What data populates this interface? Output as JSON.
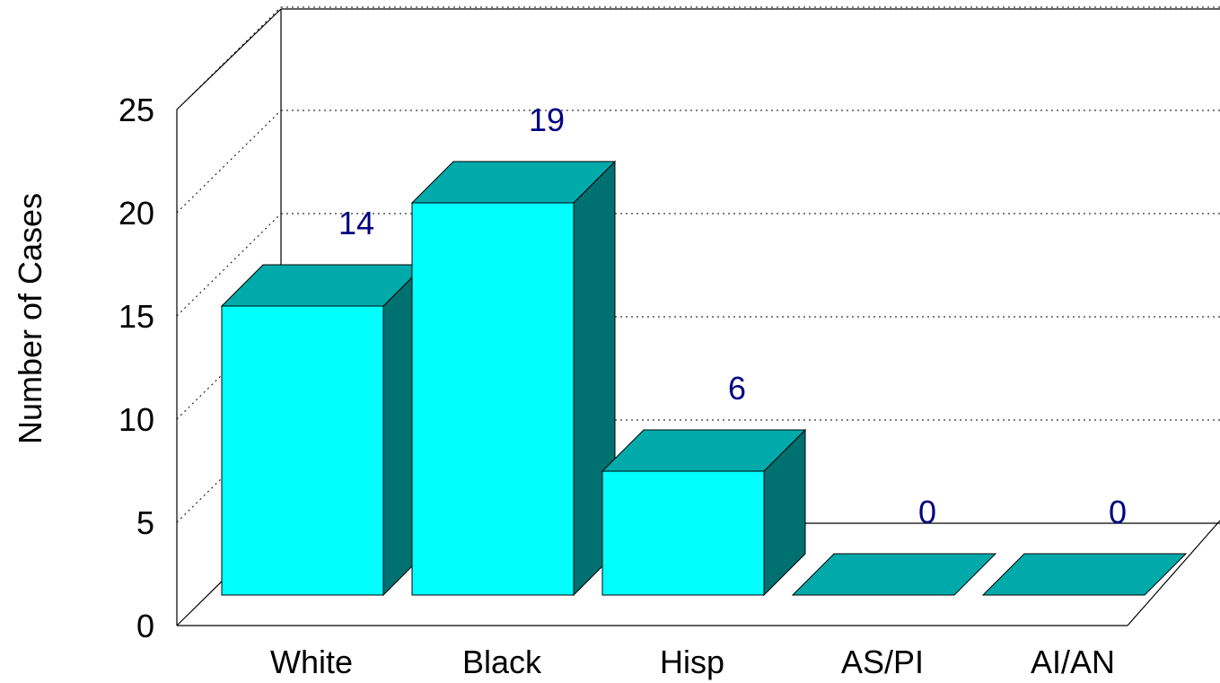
{
  "chart_data": {
    "type": "bar",
    "categories": [
      "White",
      "Black",
      "Hisp",
      "AS/PI",
      "AI/AN"
    ],
    "values": [
      14,
      19,
      6,
      0,
      0
    ],
    "data_labels": [
      "14",
      "19",
      "6",
      "0",
      "0"
    ],
    "ylabel": "Number of Cases",
    "ylim": [
      0,
      25
    ],
    "yticks": [
      0,
      5,
      10,
      15,
      20,
      25
    ],
    "ytick_labels": [
      "0",
      "5",
      "10",
      "15",
      "20",
      "25"
    ],
    "grid": true,
    "three_d": true
  },
  "colors": {
    "bar_front": "#00ffff",
    "bar_top": "#00aaaa",
    "bar_side": "#007070",
    "data_label": "#000080",
    "axis": "#000000",
    "grid": "#000000"
  }
}
